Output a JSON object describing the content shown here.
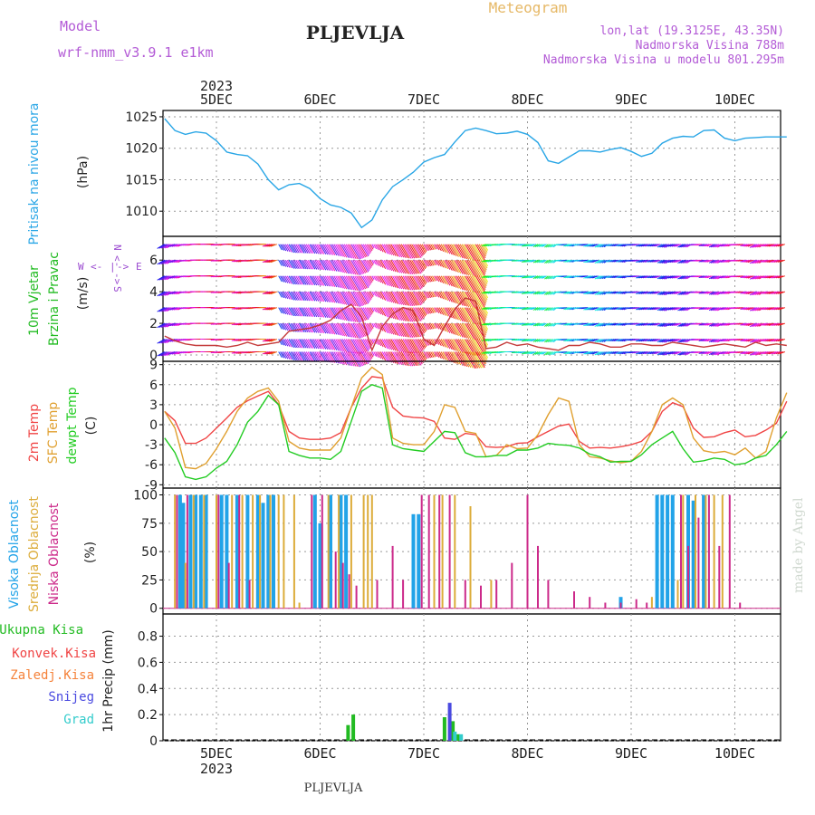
{
  "header": {
    "model_label": "Model",
    "model_name": "wrf-nmm_v3.9.1 e1km",
    "title": "PLJEVLJA",
    "subtitle": "Meteogram",
    "coords": "lon,lat (19.3125E, 43.35N)",
    "elevation": "Nadmorska Visina 788m",
    "model_elevation": "Nadmorska Visina u modelu 801.295m",
    "credit": "made by Angel",
    "footer": "PLJEVLJA"
  },
  "time_axis": {
    "year": "2023",
    "labels": [
      "5DEC",
      "6DEC",
      "7DEC",
      "8DEC",
      "9DEC",
      "10DEC"
    ]
  },
  "colors": {
    "pressure": "#29a6e6",
    "temp2m": "#f04545",
    "sfc": "#e0a030",
    "dewpt": "#22cc22",
    "cloud_high": "#22a3e8",
    "cloud_mid": "#dcac3a",
    "cloud_low": "#cc2a8a",
    "precip_total": "#22bb22",
    "precip_conv": "#f04545",
    "precip_frozen": "#f5823a",
    "precip_snow": "#4a4ae0",
    "precip_graupel": "#33cccc",
    "wind_label": "#22bb22",
    "compass": "#9a4ad0"
  },
  "chart_data": [
    {
      "type": "line",
      "name": "pressure",
      "ylabel": "Pritisak na nivou mora",
      "unit": "(hPa)",
      "yticks": [
        1010,
        1015,
        1020,
        1025
      ],
      "ylim": [
        1006,
        1026
      ],
      "x": [
        -0.5,
        -0.4,
        -0.3,
        -0.2,
        -0.1,
        0,
        0.1,
        0.2,
        0.3,
        0.4,
        0.5,
        0.6,
        0.7,
        0.8,
        0.9,
        1,
        1.1,
        1.2,
        1.3,
        1.4,
        1.5,
        1.6,
        1.7,
        1.8,
        1.9,
        2,
        2.1,
        2.2,
        2.3,
        2.4,
        2.5,
        2.6,
        2.7,
        2.8,
        2.9,
        3,
        3.1,
        3.2,
        3.3,
        3.4,
        3.5,
        3.6,
        3.7,
        3.8,
        3.9,
        4,
        4.1,
        4.2,
        4.3,
        4.4,
        4.5,
        4.6,
        4.7,
        4.8,
        4.9,
        5,
        5.1,
        5.2,
        5.3,
        5.4,
        5.5
      ],
      "values": [
        1024.7,
        1022.8,
        1022.2,
        1022.6,
        1022.4,
        1021.2,
        1019.4,
        1019.0,
        1018.8,
        1017.5,
        1015.0,
        1013.4,
        1014.2,
        1014.4,
        1013.6,
        1012.0,
        1011.0,
        1010.6,
        1009.7,
        1007.4,
        1008.6,
        1011.8,
        1013.9,
        1015.0,
        1016.2,
        1017.8,
        1018.5,
        1019.0,
        1021.0,
        1022.8,
        1023.2,
        1022.8,
        1022.3,
        1022.4,
        1022.7,
        1022.2,
        1020.9,
        1018.0,
        1017.6,
        1018.6,
        1019.6,
        1019.6,
        1019.4,
        1019.8,
        1020.1,
        1019.5,
        1018.7,
        1019.2,
        1020.8,
        1021.6,
        1021.9,
        1021.8,
        1022.8,
        1022.9,
        1021.6,
        1021.2,
        1021.6,
        1021.7,
        1021.8,
        1021.8,
        1021.8
      ]
    },
    {
      "type": "wind",
      "name": "wind",
      "ylabel": "10m Vjetar",
      "ylabel2": "Brzina i Pravac",
      "unit": "(m/s)",
      "compass": [
        "W",
        "<-",
        "|",
        "->",
        "E",
        "N",
        "<-",
        "|",
        "->",
        "S"
      ],
      "yticks": [
        0,
        2,
        4,
        6
      ],
      "ylim": [
        -0.4,
        7.5
      ],
      "x": [
        -0.5,
        -0.4,
        -0.3,
        -0.2,
        -0.1,
        0,
        0.1,
        0.2,
        0.3,
        0.4,
        0.5,
        0.6,
        0.7,
        0.8,
        0.9,
        1,
        1.1,
        1.2,
        1.3,
        1.4,
        1.5,
        1.6,
        1.7,
        1.8,
        1.9,
        2,
        2.1,
        2.2,
        2.3,
        2.4,
        2.5,
        2.6,
        2.7,
        2.8,
        2.9,
        3,
        3.1,
        3.2,
        3.3,
        3.4,
        3.5,
        3.6,
        3.7,
        3.8,
        3.9,
        4,
        4.1,
        4.2,
        4.3,
        4.4,
        4.5,
        4.6,
        4.7,
        4.8,
        4.9,
        5,
        5.1,
        5.2,
        5.3,
        5.4,
        5.5
      ],
      "speed": [
        1.2,
        0.9,
        0.7,
        0.6,
        0.6,
        0.6,
        0.5,
        0.6,
        0.8,
        0.6,
        0.7,
        0.8,
        1.5,
        1.6,
        1.7,
        1.9,
        2.2,
        2.8,
        3.2,
        2.4,
        0.3,
        1.8,
        2.6,
        3.0,
        2.8,
        1.0,
        0.6,
        1.8,
        2.9,
        3.6,
        3.4,
        0.4,
        0.5,
        0.8,
        0.6,
        0.7,
        0.5,
        0.4,
        0.3,
        0.6,
        0.6,
        0.8,
        0.7,
        0.5,
        0.5,
        0.7,
        0.7,
        0.6,
        0.6,
        0.8,
        0.7,
        0.6,
        0.5,
        0.6,
        0.7,
        0.6,
        0.5,
        0.8,
        0.6,
        0.7,
        0.6
      ],
      "direction": [
        240,
        250,
        260,
        270,
        270,
        260,
        270,
        255,
        260,
        270,
        250,
        150,
        150,
        150,
        150,
        150,
        150,
        150,
        150,
        150,
        150,
        150,
        150,
        150,
        150,
        150,
        150,
        150,
        150,
        150,
        150,
        250,
        260,
        270,
        260,
        250,
        240,
        230,
        260,
        250,
        260,
        250,
        240,
        250,
        250,
        260,
        250,
        250,
        240,
        250,
        240,
        260,
        250,
        240,
        250,
        260,
        250,
        240,
        250,
        250,
        250
      ]
    },
    {
      "type": "line",
      "name": "temperature",
      "ylabel": "2m Temp",
      "ylabel2": "SFC Temp",
      "ylabel3": "dewpt Temp",
      "unit": "(C)",
      "yticks": [
        -9,
        -6,
        -3,
        0,
        3,
        6,
        9
      ],
      "ylim": [
        -9.5,
        9.5
      ],
      "x": [
        -0.5,
        -0.4,
        -0.3,
        -0.2,
        -0.1,
        0,
        0.1,
        0.2,
        0.3,
        0.4,
        0.5,
        0.6,
        0.7,
        0.8,
        0.9,
        1,
        1.1,
        1.2,
        1.3,
        1.4,
        1.5,
        1.6,
        1.7,
        1.8,
        1.9,
        2,
        2.1,
        2.2,
        2.3,
        2.4,
        2.5,
        2.6,
        2.7,
        2.8,
        2.9,
        3,
        3.1,
        3.2,
        3.3,
        3.4,
        3.5,
        3.6,
        3.7,
        3.8,
        3.9,
        4,
        4.1,
        4.2,
        4.3,
        4.4,
        4.5,
        4.6,
        4.7,
        4.8,
        4.9,
        5,
        5.1,
        5.2,
        5.3,
        5.4,
        5.5
      ],
      "series": [
        {
          "name": "2m Temp",
          "key": "temp2m",
          "values": [
            2.0,
            0.6,
            -2.8,
            -2.8,
            -2.0,
            -0.5,
            1.0,
            2.6,
            3.6,
            4.3,
            5.0,
            3.0,
            -1.0,
            -2.0,
            -2.2,
            -2.2,
            -2.0,
            -1.2,
            2.6,
            5.5,
            7.2,
            7.0,
            2.6,
            1.3,
            1.1,
            1.0,
            0.5,
            -2.0,
            -2.2,
            -1.3,
            -1.5,
            -3.3,
            -3.4,
            -3.3,
            -2.8,
            -2.7,
            -1.8,
            -1.0,
            -0.2,
            0.1,
            -2.5,
            -3.5,
            -3.4,
            -3.5,
            -3.3,
            -3.0,
            -2.5,
            -1.0,
            2.0,
            3.3,
            2.7,
            -0.5,
            -1.9,
            -1.8,
            -1.2,
            -0.8,
            -1.8,
            -1.6,
            -0.8,
            0.2,
            3.5
          ]
        },
        {
          "name": "SFC Temp",
          "key": "sfc",
          "values": [
            2.0,
            -0.5,
            -6.4,
            -6.6,
            -5.8,
            -3.6,
            -1.0,
            2.0,
            4.0,
            5.0,
            5.5,
            3.5,
            -2.5,
            -3.5,
            -3.8,
            -3.8,
            -3.8,
            -2.0,
            2.6,
            7.0,
            8.6,
            7.5,
            -2.0,
            -2.8,
            -3.0,
            -3.0,
            -1.0,
            3.0,
            2.6,
            -1.0,
            -1.3,
            -4.8,
            -4.6,
            -3.0,
            -3.6,
            -3.5,
            -1.5,
            1.5,
            4.0,
            3.5,
            -3.0,
            -4.8,
            -5.0,
            -5.4,
            -5.7,
            -5.5,
            -4.0,
            -1.0,
            3.0,
            4.0,
            3.0,
            -2.0,
            -3.9,
            -4.2,
            -4.0,
            -4.5,
            -3.5,
            -5.0,
            -4.0,
            1.0,
            4.8
          ]
        },
        {
          "name": "dewpt Temp",
          "key": "dewpt",
          "values": [
            -2.0,
            -4.2,
            -7.8,
            -8.2,
            -7.8,
            -6.5,
            -5.5,
            -3.0,
            0.4,
            2.0,
            4.4,
            3.0,
            -4.0,
            -4.6,
            -5.0,
            -5.0,
            -5.2,
            -4.0,
            0.5,
            5.0,
            6.0,
            5.5,
            -3.0,
            -3.6,
            -3.8,
            -4.0,
            -2.5,
            -1.0,
            -1.2,
            -4.2,
            -4.8,
            -4.8,
            -4.6,
            -4.6,
            -3.8,
            -3.8,
            -3.5,
            -2.8,
            -3.0,
            -3.1,
            -3.5,
            -4.4,
            -4.8,
            -5.6,
            -5.5,
            -5.5,
            -4.5,
            -3.0,
            -2.0,
            -1.0,
            -3.6,
            -5.6,
            -5.4,
            -5.0,
            -5.2,
            -6.0,
            -5.8,
            -5.0,
            -4.6,
            -3.0,
            -1.0
          ]
        }
      ]
    },
    {
      "type": "bar",
      "name": "clouds",
      "ylabel": "Visoka Oblacnost",
      "ylabel2": "Srednja Oblacnost",
      "ylabel3": "Niska Oblacnost",
      "unit": "(%)",
      "yticks": [
        0,
        25,
        50,
        75,
        100
      ],
      "ylim": [
        -5,
        106
      ],
      "series": [
        {
          "name": "Visoka Oblacnost",
          "key": "cloud_high",
          "points": [
            [
              -0.35,
              100
            ],
            [
              -0.32,
              93
            ],
            [
              -0.25,
              100
            ],
            [
              -0.2,
              100
            ],
            [
              -0.15,
              100
            ],
            [
              -0.1,
              100
            ],
            [
              0.05,
              100
            ],
            [
              0.1,
              100
            ],
            [
              0.2,
              100
            ],
            [
              0.3,
              100
            ],
            [
              0.4,
              100
            ],
            [
              0.45,
              93
            ],
            [
              0.5,
              100
            ],
            [
              0.55,
              100
            ],
            [
              0.95,
              100
            ],
            [
              1.0,
              75
            ],
            [
              1.1,
              100
            ],
            [
              1.2,
              100
            ],
            [
              1.25,
              100
            ],
            [
              1.9,
              83
            ],
            [
              1.95,
              83
            ],
            [
              3.9,
              10
            ],
            [
              4.25,
              100
            ],
            [
              4.3,
              100
            ],
            [
              4.35,
              100
            ],
            [
              4.4,
              100
            ],
            [
              4.55,
              100
            ],
            [
              4.6,
              95
            ],
            [
              4.7,
              100
            ]
          ]
        },
        {
          "name": "Srednja Oblacnost",
          "key": "cloud_mid",
          "points": [
            [
              -0.4,
              100
            ],
            [
              -0.3,
              40
            ],
            [
              -0.22,
              100
            ],
            [
              -0.12,
              100
            ],
            [
              0.0,
              100
            ],
            [
              0.15,
              100
            ],
            [
              0.25,
              100
            ],
            [
              0.35,
              100
            ],
            [
              0.42,
              100
            ],
            [
              0.52,
              100
            ],
            [
              0.6,
              100
            ],
            [
              0.65,
              100
            ],
            [
              0.75,
              100
            ],
            [
              0.8,
              5
            ],
            [
              1.08,
              100
            ],
            [
              1.18,
              100
            ],
            [
              1.3,
              100
            ],
            [
              1.42,
              100
            ],
            [
              1.46,
              100
            ],
            [
              1.5,
              100
            ],
            [
              2.1,
              100
            ],
            [
              2.18,
              100
            ],
            [
              2.3,
              100
            ],
            [
              2.45,
              90
            ],
            [
              2.65,
              25
            ],
            [
              4.2,
              10
            ],
            [
              4.45,
              25
            ],
            [
              4.5,
              100
            ],
            [
              4.62,
              100
            ],
            [
              4.72,
              100
            ],
            [
              4.8,
              100
            ],
            [
              4.88,
              100
            ]
          ]
        },
        {
          "name": "Niska Oblacnost",
          "key": "cloud_low",
          "points": [
            [
              -0.38,
              100
            ],
            [
              -0.28,
              100
            ],
            [
              0.02,
              100
            ],
            [
              0.12,
              40
            ],
            [
              0.22,
              100
            ],
            [
              0.32,
              25
            ],
            [
              0.92,
              100
            ],
            [
              1.02,
              100
            ],
            [
              1.15,
              50
            ],
            [
              1.22,
              40
            ],
            [
              1.28,
              30
            ],
            [
              1.35,
              20
            ],
            [
              1.55,
              25
            ],
            [
              1.7,
              55
            ],
            [
              1.8,
              25
            ],
            [
              1.98,
              100
            ],
            [
              2.05,
              100
            ],
            [
              2.15,
              100
            ],
            [
              2.25,
              100
            ],
            [
              2.4,
              25
            ],
            [
              2.55,
              20
            ],
            [
              2.7,
              25
            ],
            [
              2.85,
              40
            ],
            [
              3.0,
              100
            ],
            [
              3.1,
              55
            ],
            [
              3.2,
              25
            ],
            [
              3.45,
              15
            ],
            [
              3.6,
              10
            ],
            [
              3.75,
              5
            ],
            [
              3.9,
              5
            ],
            [
              4.05,
              8
            ],
            [
              4.15,
              5
            ],
            [
              4.48,
              100
            ],
            [
              4.55,
              55
            ],
            [
              4.65,
              80
            ],
            [
              4.75,
              100
            ],
            [
              4.85,
              55
            ],
            [
              4.95,
              100
            ],
            [
              5.05,
              5
            ]
          ]
        }
      ]
    },
    {
      "type": "bar",
      "name": "precipitation",
      "legend": [
        "Ukupna Kisa",
        "Konvek.Kisa",
        "Zaledj.Kisa",
        "Snijeg",
        "Grad"
      ],
      "ylabel": "1hr Precip (mm)",
      "yticks": [
        0,
        0.2,
        0.4,
        0.6,
        0.8
      ],
      "ylim": [
        0,
        0.97
      ],
      "series": [
        {
          "name": "Ukupna Kisa",
          "key": "precip_total",
          "points": [
            [
              1.27,
              0.12
            ],
            [
              1.32,
              0.2
            ],
            [
              2.2,
              0.18
            ],
            [
              2.28,
              0.15
            ],
            [
              2.33,
              0.05
            ]
          ]
        },
        {
          "name": "Snijeg",
          "key": "precip_snow",
          "points": [
            [
              2.25,
              0.29
            ]
          ]
        },
        {
          "name": "Grad",
          "key": "precip_graupel",
          "points": [
            [
              2.3,
              0.07
            ],
            [
              2.36,
              0.05
            ]
          ]
        }
      ]
    }
  ]
}
